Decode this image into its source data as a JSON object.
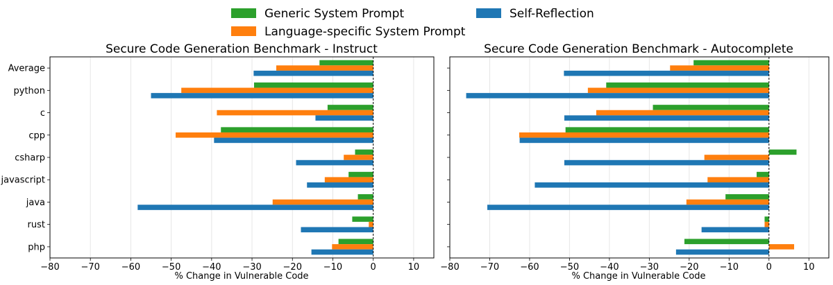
{
  "legend": {
    "items": [
      {
        "label": "Generic System Prompt",
        "color": "#2ca02c"
      },
      {
        "label": "Language-specific System Prompt",
        "color": "#ff7f0e"
      },
      {
        "label": "Self-Reflection",
        "color": "#1f77b4"
      }
    ]
  },
  "chart_data": [
    {
      "type": "bar",
      "orientation": "horizontal",
      "title": "Secure Code Generation Benchmark - Instruct",
      "xlabel": "% Change in Vulnerable Code",
      "ylabel": "",
      "xlim": [
        -80,
        15
      ],
      "xticks": [
        -80,
        -70,
        -60,
        -50,
        -40,
        -30,
        -20,
        -10,
        0,
        10
      ],
      "categories": [
        "Average",
        "python",
        "c",
        "cpp",
        "csharp",
        "javascript",
        "java",
        "rust",
        "php"
      ],
      "series": [
        {
          "name": "Generic System Prompt",
          "color": "#2ca02c",
          "values": [
            -13.3,
            -29.5,
            -11.3,
            -37.7,
            -4.5,
            -6.1,
            -3.8,
            -5.2,
            -8.6
          ]
        },
        {
          "name": "Language-specific System Prompt",
          "color": "#ff7f0e",
          "values": [
            -24.0,
            -47.5,
            -38.7,
            -48.9,
            -7.3,
            -12.0,
            -24.9,
            -1.1,
            -10.2
          ]
        },
        {
          "name": "Self-Reflection",
          "color": "#1f77b4",
          "values": [
            -29.6,
            -55.0,
            -14.3,
            -39.4,
            -19.1,
            -16.4,
            -58.3,
            -17.9,
            -15.3
          ]
        }
      ]
    },
    {
      "type": "bar",
      "orientation": "horizontal",
      "title": "Secure Code Generation Benchmark - Autocomplete",
      "xlabel": "% Change in Vulnerable Code",
      "ylabel": "",
      "xlim": [
        -80,
        15
      ],
      "xticks": [
        -80,
        -70,
        -60,
        -50,
        -40,
        -30,
        -20,
        -10,
        0,
        10
      ],
      "categories": [
        "Average",
        "python",
        "c",
        "cpp",
        "csharp",
        "javascript",
        "java",
        "rust",
        "php"
      ],
      "series": [
        {
          "name": "Generic System Prompt",
          "color": "#2ca02c",
          "values": [
            -18.9,
            -40.8,
            -29.1,
            -51.0,
            6.9,
            -3.1,
            -10.9,
            -1.1,
            -21.2
          ]
        },
        {
          "name": "Language-specific System Prompt",
          "color": "#ff7f0e",
          "values": [
            -24.8,
            -45.4,
            -43.3,
            -62.6,
            -16.2,
            -15.4,
            -20.7,
            -1.1,
            6.3
          ]
        },
        {
          "name": "Self-Reflection",
          "color": "#1f77b4",
          "values": [
            -51.4,
            -75.9,
            -51.3,
            -62.5,
            -51.3,
            -58.7,
            -70.6,
            -16.9,
            -23.3
          ]
        }
      ]
    }
  ]
}
